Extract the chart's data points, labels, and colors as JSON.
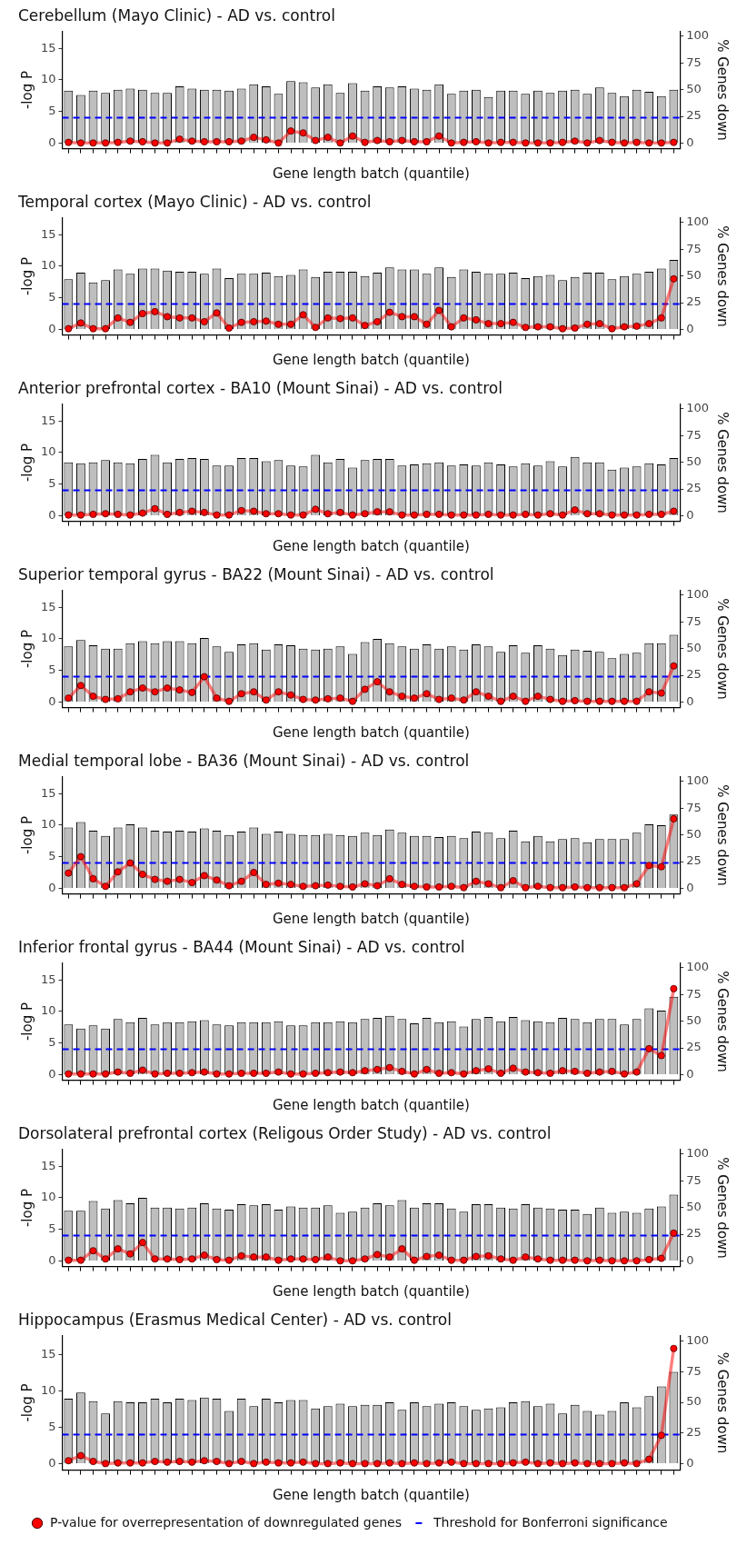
{
  "chart_data": [
    {
      "type": "bar",
      "title": "Cerebellum (Mayo Clinic) - AD vs. control",
      "xlabel": "Gene length batch (quantile)",
      "ylabel": "-log P",
      "y2label": "% Genes down",
      "categories": [
        null,
        null,
        null,
        null,
        null,
        null,
        null,
        null,
        null,
        null,
        null,
        null,
        null,
        null,
        null,
        null,
        null,
        null,
        null,
        null,
        null,
        null,
        null,
        null,
        null,
        null,
        null,
        null,
        null,
        null,
        null,
        null,
        null,
        null,
        null,
        null,
        null,
        null,
        null,
        null,
        null,
        null,
        null,
        null,
        null,
        null,
        null,
        null,
        null,
        null
      ],
      "series": [
        {
          "axis": "y2",
          "color": "#bebebe",
          "values": [
            49,
            45,
            49,
            47,
            50,
            51,
            50,
            47,
            47,
            53,
            51,
            50,
            50,
            49,
            51,
            55,
            53,
            46,
            58,
            57,
            52,
            55,
            47,
            56,
            49,
            53,
            52,
            53,
            51,
            50,
            55,
            46,
            49,
            50,
            43,
            49,
            49,
            46,
            49,
            47,
            49,
            50,
            46,
            52,
            47,
            44,
            50,
            48,
            44,
            50
          ]
        },
        {
          "type": "line",
          "color": "#ff0000",
          "values": [
            0.1,
            0,
            0,
            0,
            0.1,
            0.3,
            0.2,
            0,
            0,
            0.6,
            0.3,
            0.2,
            0.2,
            0.2,
            0.3,
            0.9,
            0.5,
            0,
            1.9,
            1.6,
            0.4,
            0.9,
            0,
            1.1,
            0.1,
            0.4,
            0.2,
            0.4,
            0.2,
            0.2,
            1.1,
            0,
            0.1,
            0.2,
            0,
            0.1,
            0.1,
            0,
            0,
            0,
            0.1,
            0.3,
            0,
            0.4,
            0.1,
            0,
            0.1,
            0,
            0,
            0.1
          ]
        }
      ],
      "ylim": [
        -0.9,
        17.7
      ],
      "yticks": [
        0,
        5,
        10,
        15
      ],
      "y2lim": [
        -5.3,
        104.7
      ],
      "y2ticks": [
        0,
        25,
        50,
        75,
        100
      ],
      "marker": "circle",
      "ref_lines": [
        {
          "axis": "y",
          "value": 4,
          "color": "#0000ff",
          "line_style": "dashed"
        }
      ]
    },
    {
      "type": "bar",
      "title": "Temporal cortex (Mayo Clinic) - AD vs. control",
      "xlabel": "Gene length batch (quantile)",
      "ylabel": "-log P",
      "y2label": "% Genes down",
      "categories": [
        null,
        null,
        null,
        null,
        null,
        null,
        null,
        null,
        null,
        null,
        null,
        null,
        null,
        null,
        null,
        null,
        null,
        null,
        null,
        null,
        null,
        null,
        null,
        null,
        null,
        null,
        null,
        null,
        null,
        null,
        null,
        null,
        null,
        null,
        null,
        null,
        null,
        null,
        null,
        null,
        null,
        null,
        null,
        null,
        null,
        null,
        null,
        null,
        null,
        null
      ],
      "series": [
        {
          "axis": "y2",
          "color": "#bebebe",
          "values": [
            47,
            53,
            44,
            46,
            56,
            52,
            57,
            57,
            55,
            54,
            54,
            52,
            57,
            48,
            52,
            52,
            53,
            50,
            51,
            56,
            49,
            54,
            54,
            54,
            50,
            53,
            58,
            56,
            56,
            52,
            58,
            49,
            56,
            54,
            52,
            52,
            53,
            48,
            50,
            51,
            46,
            49,
            53,
            53,
            47,
            50,
            52,
            54,
            57,
            65
          ]
        },
        {
          "type": "line",
          "color": "#ff0000",
          "values": [
            0.1,
            1.0,
            0.1,
            0.1,
            1.8,
            1.1,
            2.5,
            2.8,
            2.0,
            1.8,
            1.8,
            1.2,
            2.6,
            0.2,
            1.1,
            1.2,
            1.3,
            0.8,
            0.8,
            2.3,
            0.3,
            1.8,
            1.7,
            1.8,
            0.6,
            1.2,
            2.7,
            2.0,
            2.0,
            0.8,
            3.0,
            0.4,
            1.8,
            1.5,
            0.9,
            0.9,
            1.1,
            0.3,
            0.4,
            0.4,
            0.1,
            0.2,
            0.8,
            0.9,
            0.1,
            0.4,
            0.5,
            0.9,
            1.8,
            8.0
          ]
        }
      ],
      "ylim": [
        -0.9,
        17.7
      ],
      "yticks": [
        0,
        5,
        10,
        15
      ],
      "y2lim": [
        -5.3,
        104.7
      ],
      "y2ticks": [
        0,
        25,
        50,
        75,
        100
      ],
      "marker": "circle",
      "ref_lines": [
        {
          "axis": "y",
          "value": 4,
          "color": "#0000ff",
          "line_style": "dashed"
        }
      ]
    },
    {
      "type": "bar",
      "title": "Anterior prefrontal cortex - BA10 (Mount Sinai) - AD vs. control",
      "xlabel": "Gene length batch (quantile)",
      "ylabel": "-log P",
      "y2label": "% Genes down",
      "categories": [
        null,
        null,
        null,
        null,
        null,
        null,
        null,
        null,
        null,
        null,
        null,
        null,
        null,
        null,
        null,
        null,
        null,
        null,
        null,
        null,
        null,
        null,
        null,
        null,
        null,
        null,
        null,
        null,
        null,
        null,
        null,
        null,
        null,
        null,
        null,
        null,
        null,
        null,
        null,
        null,
        null,
        null,
        null,
        null,
        null,
        null,
        null,
        null,
        null,
        null
      ],
      "series": [
        {
          "axis": "y2",
          "color": "#bebebe",
          "values": [
            50,
            49,
            50,
            52,
            50,
            49,
            53,
            57,
            50,
            53,
            54,
            53,
            47,
            47,
            54,
            54,
            51,
            52,
            47,
            46,
            57,
            50,
            53,
            45,
            52,
            53,
            53,
            47,
            48,
            49,
            50,
            47,
            48,
            47,
            50,
            48,
            46,
            49,
            47,
            51,
            46,
            55,
            50,
            50,
            43,
            45,
            46,
            49,
            48,
            54
          ]
        },
        {
          "type": "line",
          "color": "#ff0000",
          "values": [
            0.1,
            0.1,
            0.2,
            0.3,
            0.2,
            0.1,
            0.4,
            1.1,
            0.2,
            0.5,
            0.7,
            0.5,
            0.1,
            0.1,
            0.8,
            0.7,
            0.3,
            0.3,
            0.1,
            0.1,
            1.0,
            0.3,
            0.5,
            0.1,
            0.3,
            0.6,
            0.6,
            0.1,
            0.1,
            0.2,
            0.2,
            0.1,
            0.1,
            0.1,
            0.2,
            0.1,
            0.1,
            0.2,
            0.1,
            0.3,
            0.1,
            0.9,
            0.3,
            0.3,
            0.1,
            0.1,
            0.1,
            0.2,
            0.2,
            0.7
          ]
        }
      ],
      "ylim": [
        -0.9,
        17.7
      ],
      "yticks": [
        0,
        5,
        10,
        15
      ],
      "y2lim": [
        -5.3,
        104.7
      ],
      "y2ticks": [
        0,
        25,
        50,
        75,
        100
      ],
      "marker": "circle",
      "ref_lines": [
        {
          "axis": "y",
          "value": 4,
          "color": "#0000ff",
          "line_style": "dashed"
        }
      ]
    },
    {
      "type": "bar",
      "title": "Superior temporal gyrus - BA22 (Mount Sinai) - AD vs. control",
      "xlabel": "Gene length batch (quantile)",
      "ylabel": "-log P",
      "y2label": "% Genes down",
      "categories": [
        null,
        null,
        null,
        null,
        null,
        null,
        null,
        null,
        null,
        null,
        null,
        null,
        null,
        null,
        null,
        null,
        null,
        null,
        null,
        null,
        null,
        null,
        null,
        null,
        null,
        null,
        null,
        null,
        null,
        null,
        null,
        null,
        null,
        null,
        null,
        null,
        null,
        null,
        null,
        null,
        null,
        null,
        null,
        null,
        null,
        null,
        null,
        null,
        null,
        null
      ],
      "series": [
        {
          "axis": "y2",
          "color": "#bebebe",
          "values": [
            52,
            58,
            53,
            50,
            50,
            55,
            57,
            55,
            57,
            57,
            55,
            60,
            52,
            47,
            54,
            55,
            49,
            54,
            53,
            50,
            49,
            50,
            52,
            45,
            56,
            59,
            55,
            52,
            50,
            54,
            50,
            52,
            49,
            54,
            52,
            47,
            53,
            46,
            53,
            50,
            44,
            49,
            48,
            47,
            41,
            45,
            46,
            55,
            55,
            63
          ]
        },
        {
          "type": "line",
          "color": "#ff0000",
          "values": [
            0.6,
            2.6,
            0.9,
            0.4,
            0.5,
            1.6,
            2.2,
            1.6,
            2.2,
            1.9,
            1.5,
            4.0,
            0.6,
            0.1,
            1.3,
            1.6,
            0.3,
            1.6,
            1.1,
            0.4,
            0.3,
            0.5,
            0.6,
            0.1,
            2.0,
            3.2,
            1.6,
            0.9,
            0.6,
            1.3,
            0.4,
            0.6,
            0.3,
            1.6,
            0.9,
            0.1,
            0.9,
            0.1,
            0.9,
            0.4,
            0.1,
            0.2,
            0.1,
            0.1,
            0.1,
            0.1,
            0.1,
            1.6,
            1.4,
            5.7
          ]
        }
      ],
      "ylim": [
        -0.9,
        17.7
      ],
      "yticks": [
        0,
        5,
        10,
        15
      ],
      "y2lim": [
        -5.3,
        104.7
      ],
      "y2ticks": [
        0,
        25,
        50,
        75,
        100
      ],
      "marker": "circle",
      "ref_lines": [
        {
          "axis": "y",
          "value": 4,
          "color": "#0000ff",
          "line_style": "dashed"
        }
      ]
    },
    {
      "type": "bar",
      "title": "Medial temporal lobe - BA36 (Mount Sinai) - AD vs. control",
      "xlabel": "Gene length batch (quantile)",
      "ylabel": "-log P",
      "y2label": "% Genes down",
      "categories": [
        null,
        null,
        null,
        null,
        null,
        null,
        null,
        null,
        null,
        null,
        null,
        null,
        null,
        null,
        null,
        null,
        null,
        null,
        null,
        null,
        null,
        null,
        null,
        null,
        null,
        null,
        null,
        null,
        null,
        null,
        null,
        null,
        null,
        null,
        null,
        null,
        null,
        null,
        null,
        null,
        null,
        null,
        null,
        null,
        null,
        null,
        null,
        null,
        null,
        null
      ],
      "series": [
        {
          "axis": "y2",
          "color": "#bebebe",
          "values": [
            57,
            62,
            54,
            49,
            57,
            60,
            57,
            54,
            53,
            54,
            53,
            56,
            54,
            50,
            53,
            57,
            51,
            53,
            51,
            50,
            50,
            51,
            50,
            49,
            52,
            50,
            55,
            52,
            49,
            49,
            48,
            49,
            47,
            53,
            52,
            47,
            54,
            44,
            49,
            44,
            46,
            47,
            43,
            46,
            46,
            46,
            52,
            60,
            59,
            69
          ]
        },
        {
          "type": "line",
          "color": "#ff0000",
          "values": [
            2.4,
            5.0,
            1.5,
            0.3,
            2.6,
            4.0,
            2.2,
            1.4,
            1.1,
            1.4,
            0.9,
            2.0,
            1.3,
            0.4,
            1.1,
            2.5,
            0.6,
            0.8,
            0.6,
            0.3,
            0.4,
            0.5,
            0.3,
            0.2,
            0.7,
            0.4,
            1.5,
            0.6,
            0.3,
            0.2,
            0.2,
            0.3,
            0.1,
            1.1,
            0.7,
            0.1,
            1.2,
            0.1,
            0.3,
            0.1,
            0.1,
            0.2,
            0.1,
            0.1,
            0.1,
            0.1,
            0.7,
            3.6,
            3.4,
            11.0
          ]
        }
      ],
      "ylim": [
        -0.9,
        17.7
      ],
      "yticks": [
        0,
        5,
        10,
        15
      ],
      "y2lim": [
        -5.3,
        104.7
      ],
      "y2ticks": [
        0,
        25,
        50,
        75,
        100
      ],
      "marker": "circle",
      "ref_lines": [
        {
          "axis": "y",
          "value": 4,
          "color": "#0000ff",
          "line_style": "dashed"
        }
      ]
    },
    {
      "type": "bar",
      "title": "Inferior frontal gyrus - BA44 (Mount Sinai) - AD vs. control",
      "xlabel": "Gene length batch (quantile)",
      "ylabel": "-log P",
      "y2label": "% Genes down",
      "categories": [
        null,
        null,
        null,
        null,
        null,
        null,
        null,
        null,
        null,
        null,
        null,
        null,
        null,
        null,
        null,
        null,
        null,
        null,
        null,
        null,
        null,
        null,
        null,
        null,
        null,
        null,
        null,
        null,
        null,
        null,
        null,
        null,
        null,
        null,
        null,
        null,
        null,
        null,
        null,
        null,
        null,
        null,
        null,
        null,
        null,
        null,
        null,
        null,
        null,
        null
      ],
      "series": [
        {
          "axis": "y2",
          "color": "#bebebe",
          "values": [
            47,
            43,
            46,
            43,
            52,
            49,
            53,
            47,
            49,
            49,
            50,
            51,
            47,
            46,
            49,
            49,
            49,
            50,
            46,
            46,
            49,
            49,
            50,
            49,
            52,
            53,
            55,
            52,
            48,
            53,
            49,
            50,
            45,
            52,
            54,
            50,
            54,
            51,
            50,
            49,
            53,
            52,
            49,
            52,
            52,
            47,
            52,
            62,
            60,
            73
          ]
        },
        {
          "type": "line",
          "color": "#ff0000",
          "values": [
            0.1,
            0.1,
            0.1,
            0.1,
            0.4,
            0.2,
            0.7,
            0.1,
            0.2,
            0.2,
            0.3,
            0.4,
            0.1,
            0.1,
            0.2,
            0.2,
            0.2,
            0.4,
            0.1,
            0.1,
            0.2,
            0.3,
            0.4,
            0.3,
            0.6,
            0.8,
            1.1,
            0.5,
            0.1,
            0.8,
            0.2,
            0.3,
            0.1,
            0.6,
            0.9,
            0.2,
            1.0,
            0.4,
            0.3,
            0.2,
            0.6,
            0.5,
            0.2,
            0.4,
            0.5,
            0.1,
            0.4,
            4.1,
            3.0,
            13.6
          ]
        }
      ],
      "ylim": [
        -0.9,
        17.7
      ],
      "yticks": [
        0,
        5,
        10,
        15
      ],
      "y2lim": [
        -5.3,
        104.7
      ],
      "y2ticks": [
        0,
        25,
        50,
        75,
        100
      ],
      "marker": "circle",
      "ref_lines": [
        {
          "axis": "y",
          "value": 4,
          "color": "#0000ff",
          "line_style": "dashed"
        }
      ]
    },
    {
      "type": "bar",
      "title": "Dorsolateral prefrontal cortex (Religous Order Study) - AD vs. control",
      "xlabel": "Gene length batch (quantile)",
      "ylabel": "-log P",
      "y2label": "% Genes down",
      "categories": [
        null,
        null,
        null,
        null,
        null,
        null,
        null,
        null,
        null,
        null,
        null,
        null,
        null,
        null,
        null,
        null,
        null,
        null,
        null,
        null,
        null,
        null,
        null,
        null,
        null,
        null,
        null,
        null,
        null,
        null,
        null,
        null,
        null,
        null,
        null,
        null,
        null,
        null,
        null,
        null,
        null,
        null,
        null,
        null,
        null,
        null,
        null,
        null,
        null,
        null
      ],
      "series": [
        {
          "axis": "y2",
          "color": "#bebebe",
          "values": [
            47,
            47,
            56,
            49,
            57,
            54,
            59,
            50,
            50,
            49,
            50,
            54,
            49,
            48,
            53,
            52,
            53,
            48,
            51,
            50,
            50,
            52,
            45,
            46,
            50,
            54,
            52,
            57,
            50,
            54,
            54,
            49,
            46,
            53,
            53,
            50,
            49,
            53,
            50,
            49,
            48,
            48,
            44,
            50,
            45,
            46,
            45,
            49,
            51,
            62
          ]
        },
        {
          "type": "line",
          "color": "#ff0000",
          "values": [
            0.1,
            0.1,
            1.6,
            0.3,
            1.9,
            1.1,
            2.9,
            0.3,
            0.3,
            0.2,
            0.3,
            0.9,
            0.2,
            0.1,
            0.8,
            0.6,
            0.6,
            0.1,
            0.3,
            0.3,
            0.2,
            0.6,
            0,
            0,
            0.3,
            1.0,
            0.6,
            1.9,
            0.1,
            0.7,
            0.9,
            0.1,
            0.1,
            0.7,
            0.8,
            0.3,
            0.1,
            0.6,
            0.3,
            0.1,
            0.1,
            0.1,
            0,
            0.1,
            0,
            0,
            0,
            0.2,
            0.4,
            4.4
          ]
        }
      ],
      "ylim": [
        -0.9,
        17.7
      ],
      "yticks": [
        0,
        5,
        10,
        15
      ],
      "y2lim": [
        -5.3,
        104.7
      ],
      "y2ticks": [
        0,
        25,
        50,
        75,
        100
      ],
      "marker": "circle",
      "ref_lines": [
        {
          "axis": "y",
          "value": 4,
          "color": "#0000ff",
          "line_style": "dashed"
        }
      ]
    },
    {
      "type": "bar",
      "title": "Hippocampus (Erasmus Medical Center) - AD vs. control",
      "xlabel": "Gene length batch (quantile)",
      "ylabel": "-log P",
      "y2label": "% Genes down",
      "categories": [
        null,
        null,
        null,
        null,
        null,
        null,
        null,
        null,
        null,
        null,
        null,
        null,
        null,
        null,
        null,
        null,
        null,
        null,
        null,
        null,
        null,
        null,
        null,
        null,
        null,
        null,
        null,
        null,
        null,
        null,
        null,
        null,
        null,
        null,
        null,
        null,
        null,
        null,
        null,
        null,
        null,
        null,
        null,
        null,
        null,
        null,
        null,
        null,
        null,
        null
      ],
      "series": [
        {
          "axis": "y2",
          "color": "#bebebe",
          "values": [
            53,
            58,
            51,
            41,
            51,
            50,
            50,
            53,
            50,
            53,
            52,
            54,
            53,
            43,
            53,
            47,
            53,
            50,
            52,
            52,
            45,
            47,
            49,
            47,
            48,
            48,
            50,
            44,
            50,
            47,
            49,
            50,
            47,
            44,
            45,
            46,
            50,
            51,
            47,
            49,
            41,
            48,
            43,
            40,
            43,
            50,
            46,
            55,
            63,
            75
          ]
        },
        {
          "type": "line",
          "name": "P-value for overrepresentation of downregulated genes",
          "color": "#ff0000",
          "values": [
            0.4,
            1.1,
            0.3,
            0,
            0.1,
            0.1,
            0.1,
            0.3,
            0.2,
            0.3,
            0.2,
            0.4,
            0.3,
            0,
            0.3,
            0,
            0.2,
            0.1,
            0.1,
            0.2,
            0,
            0,
            0.1,
            0,
            0,
            0,
            0.1,
            0,
            0.1,
            0,
            0.1,
            0.2,
            0,
            0,
            0,
            0,
            0.1,
            0.2,
            0,
            0.1,
            0,
            0.1,
            0,
            0,
            0,
            0.1,
            0,
            0.6,
            3.9,
            15.9
          ]
        }
      ],
      "ylim": [
        -0.9,
        17.7
      ],
      "yticks": [
        0,
        5,
        10,
        15
      ],
      "y2lim": [
        -5.3,
        104.7
      ],
      "y2ticks": [
        0,
        25,
        50,
        75,
        100
      ],
      "marker": "circle",
      "legend": "bottom",
      "ref_lines": [
        {
          "axis": "y",
          "value": 4,
          "color": "#0000ff",
          "line_style": "dashed",
          "label": "Threshold for Bonferroni significance"
        }
      ]
    }
  ]
}
